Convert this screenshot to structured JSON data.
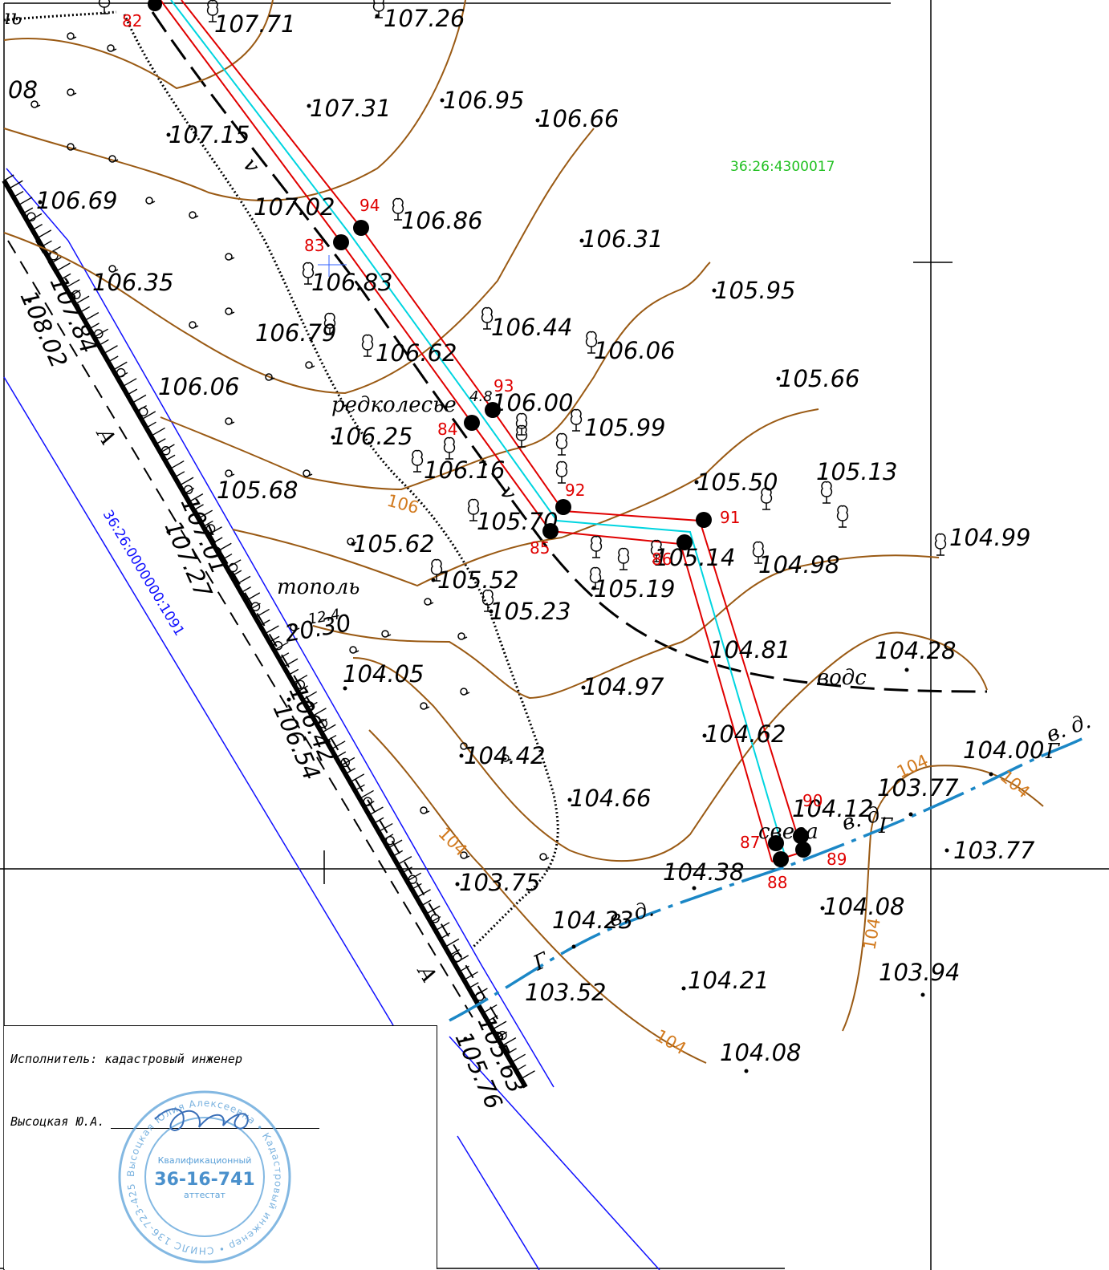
{
  "map": {
    "parcel_main": "36:26:4300017",
    "parcel_road": "36:26:0000000:1091"
  },
  "elevations": [
    "107.71",
    "107.26",
    "107.31",
    "106.95",
    "106.66",
    "107.15",
    "107.02",
    "106.69",
    "106.86",
    "106.31",
    "106.35",
    "106.83",
    "105.95",
    "106.44",
    "106.79",
    "106.62",
    "106.06",
    "105.66",
    "106.06",
    "106.00",
    "105.99",
    "106.25",
    "106.16",
    "105.13",
    "105.50",
    "105.68",
    "105.70",
    "104.99",
    "105.62",
    "105.14",
    "104.98",
    "105.52",
    "105.23",
    "105.19",
    "104.81",
    "104.28",
    "104.05",
    "104.97",
    "104.62",
    "104.00",
    "104.42",
    "103.77",
    "104.66",
    "104.12",
    "103.77",
    "104.38",
    "103.75",
    "104.08",
    "104.23",
    "103.94",
    "104.21",
    "103.52",
    "104.08",
    "107.84",
    "108.02",
    "107.01",
    "107.27",
    "106.42",
    "106.54",
    "105.63",
    "105.76",
    "20.30",
    "08"
  ],
  "point_numbers": [
    "82",
    "94",
    "83",
    "93",
    "84",
    "92",
    "91",
    "85",
    "86",
    "90",
    "87",
    "89",
    "88"
  ],
  "contour_labels": [
    "106",
    "104",
    "104",
    "104",
    "104",
    "104"
  ],
  "words": {
    "redkolesie": "редколесье",
    "topol": "тополь",
    "vodс": "водс",
    "svesa": "свеза",
    "g1": "Г",
    "g2": "Г",
    "g3": "Г",
    "ed1": "в. д.",
    "ed2": "в. д.",
    "ed3": "в. д.",
    "a1": "А",
    "a2": "А",
    "v1": "v",
    "v2": "v",
    "num124": "12.4",
    "num48": "4.8",
    "ib": "ıь"
  },
  "signature": {
    "executor": "Исполнитель: кадастровый инженер",
    "name": "Высоцкая Ю.А."
  },
  "stamp": {
    "line1": "Квалификационный",
    "number": "36-16-741",
    "line3": "аттестат",
    "ring": "Высоцкая Юлия Алексеевна • Кадастровый инженер • СНИЛС 136-723-425 73 • ИНН 366312848928 •"
  }
}
